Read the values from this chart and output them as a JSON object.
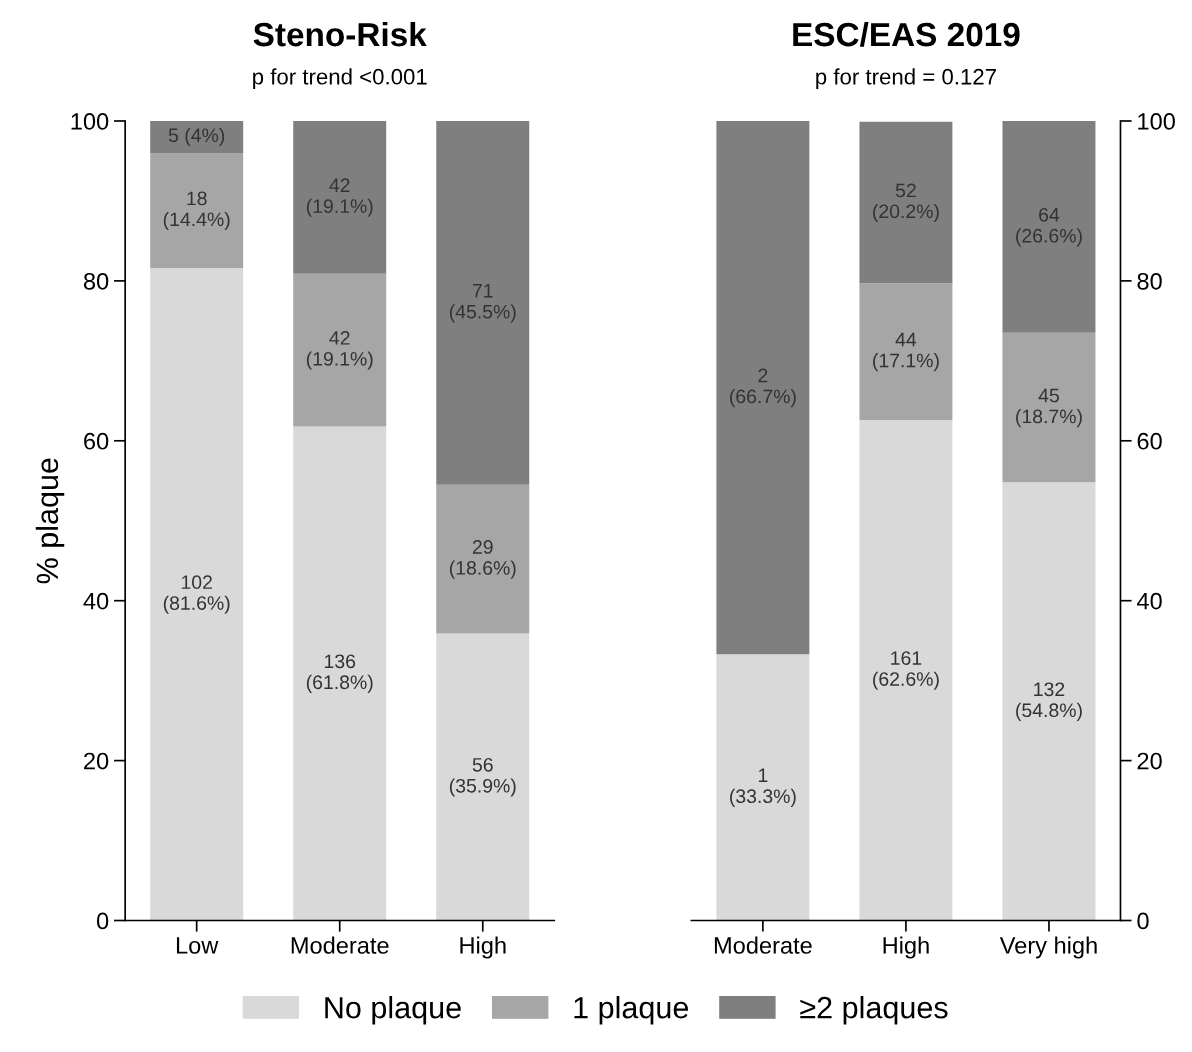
{
  "chart_data": [
    {
      "type": "bar",
      "stacked": true,
      "title": "Steno-Risk",
      "subtitle": "p for trend <0.001",
      "ylabel": "% plaque",
      "categories": [
        "Low",
        "Moderate",
        "High"
      ],
      "ylim": [
        0,
        100
      ],
      "yticks": [
        0,
        20,
        40,
        60,
        80,
        100
      ],
      "grid": false,
      "legend": "bottom",
      "series": [
        {
          "name": "No plaque",
          "color": "#d9d9d9",
          "values": [
            81.6,
            61.8,
            35.9
          ],
          "value_labels": [
            "102\n(81.6%)",
            "136\n(61.8%)",
            "56\n(35.9%)"
          ]
        },
        {
          "name": "1 plaque",
          "color": "#a6a6a6",
          "values": [
            14.4,
            19.1,
            18.6
          ],
          "value_labels": [
            "18\n(14.4%)",
            "42\n(19.1%)",
            "29\n(18.6%)"
          ]
        },
        {
          "name": "≥2 plaques",
          "color": "#7f7f7f",
          "values": [
            4,
            19.1,
            45.5
          ],
          "value_labels": [
            "5 (4%)",
            "42\n(19.1%)",
            "71\n(45.5%)"
          ]
        }
      ]
    },
    {
      "type": "bar",
      "stacked": true,
      "title": "ESC/EAS 2019",
      "subtitle": "p for trend = 0.127",
      "categories": [
        "Moderate",
        "High",
        "Very high"
      ],
      "y2lim": [
        0,
        100
      ],
      "y2ticks": [
        0,
        20,
        40,
        60,
        80,
        100
      ],
      "grid": false,
      "series": [
        {
          "color": "#d9d9d9",
          "axis": "y2",
          "values": [
            33.3,
            62.6,
            54.8
          ],
          "value_labels": [
            "1\n(33.3%)",
            "161\n(62.6%)",
            "132\n(54.8%)"
          ]
        },
        {
          "color": "#a6a6a6",
          "axis": "y2",
          "values": [
            0,
            17.1,
            18.7
          ],
          "value_labels": [
            null,
            "44\n(17.1%)",
            "45\n(18.7%)"
          ]
        },
        {
          "color": "#7f7f7f",
          "axis": "y2",
          "values": [
            66.7,
            20.2,
            26.6
          ],
          "value_labels": [
            "2\n(66.7%)",
            "52\n(20.2%)",
            "64\n(26.6%)"
          ]
        }
      ]
    }
  ]
}
